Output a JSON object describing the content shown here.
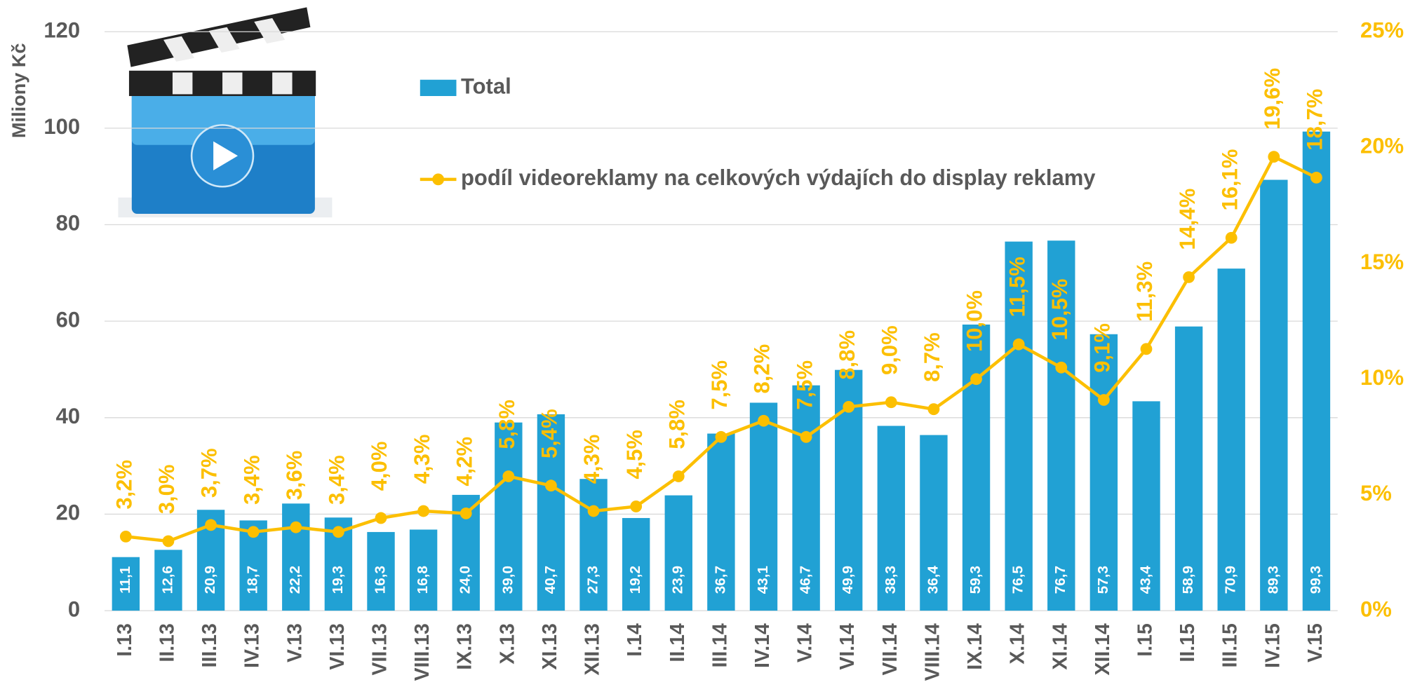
{
  "chart_data": {
    "type": "bar_line",
    "y_label": "Miliony Kč",
    "categories": [
      "I.13",
      "II.13",
      "III.13",
      "IV.13",
      "V.13",
      "VI.13",
      "VII.13",
      "VIII.13",
      "IX.13",
      "X.13",
      "XI.13",
      "XII.13",
      "I.14",
      "II.14",
      "III.14",
      "IV.14",
      "V.14",
      "VI.14",
      "VII.14",
      "VIII.14",
      "IX.14",
      "X.14",
      "XI.14",
      "XII.14",
      "I.15",
      "II.15",
      "III.15",
      "IV.15",
      "V.15"
    ],
    "series": [
      {
        "name": "Total",
        "type": "bar",
        "color": "#21a1d4",
        "values": [
          11.1,
          12.6,
          20.9,
          18.7,
          22.2,
          19.3,
          16.3,
          16.8,
          24.0,
          39.0,
          40.7,
          27.3,
          19.2,
          23.9,
          36.7,
          43.1,
          46.7,
          49.9,
          38.3,
          36.4,
          59.3,
          76.5,
          76.7,
          57.3,
          43.4,
          58.9,
          70.9,
          89.3,
          99.3
        ],
        "value_labels": [
          "11,1",
          "12,6",
          "20,9",
          "18,7",
          "22,2",
          "19,3",
          "16,3",
          "16,8",
          "24,0",
          "39,0",
          "40,7",
          "27,3",
          "19,2",
          "23,9",
          "36,7",
          "43,1",
          "46,7",
          "49,9",
          "38,3",
          "36,4",
          "59,3",
          "76,5",
          "76,7",
          "57,3",
          "43,4",
          "58,9",
          "70,9",
          "89,3",
          "99,3"
        ]
      },
      {
        "name": "podíl videoreklamy na celkových výdajích do display reklamy",
        "type": "line",
        "axis": "y2",
        "color": "#fcbf00",
        "values": [
          3.2,
          3.0,
          3.7,
          3.4,
          3.6,
          3.4,
          4.0,
          4.3,
          4.2,
          5.8,
          5.4,
          4.3,
          4.5,
          5.8,
          7.5,
          8.2,
          7.5,
          8.8,
          9.0,
          8.7,
          10.0,
          11.5,
          10.5,
          9.1,
          11.3,
          14.4,
          16.1,
          19.6,
          18.7
        ],
        "value_labels": [
          "3,2%",
          "3,0%",
          "3,7%",
          "3,4%",
          "3,6%",
          "3,4%",
          "4,0%",
          "4,3%",
          "4,2%",
          "5,8%",
          "5,4%",
          "4,3%",
          "4,5%",
          "5,8%",
          "7,5%",
          "8,2%",
          "7,5%",
          "8,8%",
          "9,0%",
          "8,7%",
          "10,0%",
          "11,5%",
          "10,5%",
          "9,1%",
          "11,3%",
          "14,4%",
          "16,1%",
          "19,6%",
          "18,7%"
        ]
      }
    ],
    "ylim": [
      0,
      120
    ],
    "yticks": [
      0,
      20,
      40,
      60,
      80,
      100,
      120
    ],
    "y2lim": [
      0,
      25
    ],
    "y2ticks": [
      {
        "value": 0,
        "label": "0%"
      },
      {
        "value": 5,
        "label": "5%"
      },
      {
        "value": 10,
        "label": "10%"
      },
      {
        "value": 15,
        "label": "15%"
      },
      {
        "value": 20,
        "label": "20%"
      },
      {
        "value": 25,
        "label": "25%"
      }
    ],
    "grid": true
  }
}
